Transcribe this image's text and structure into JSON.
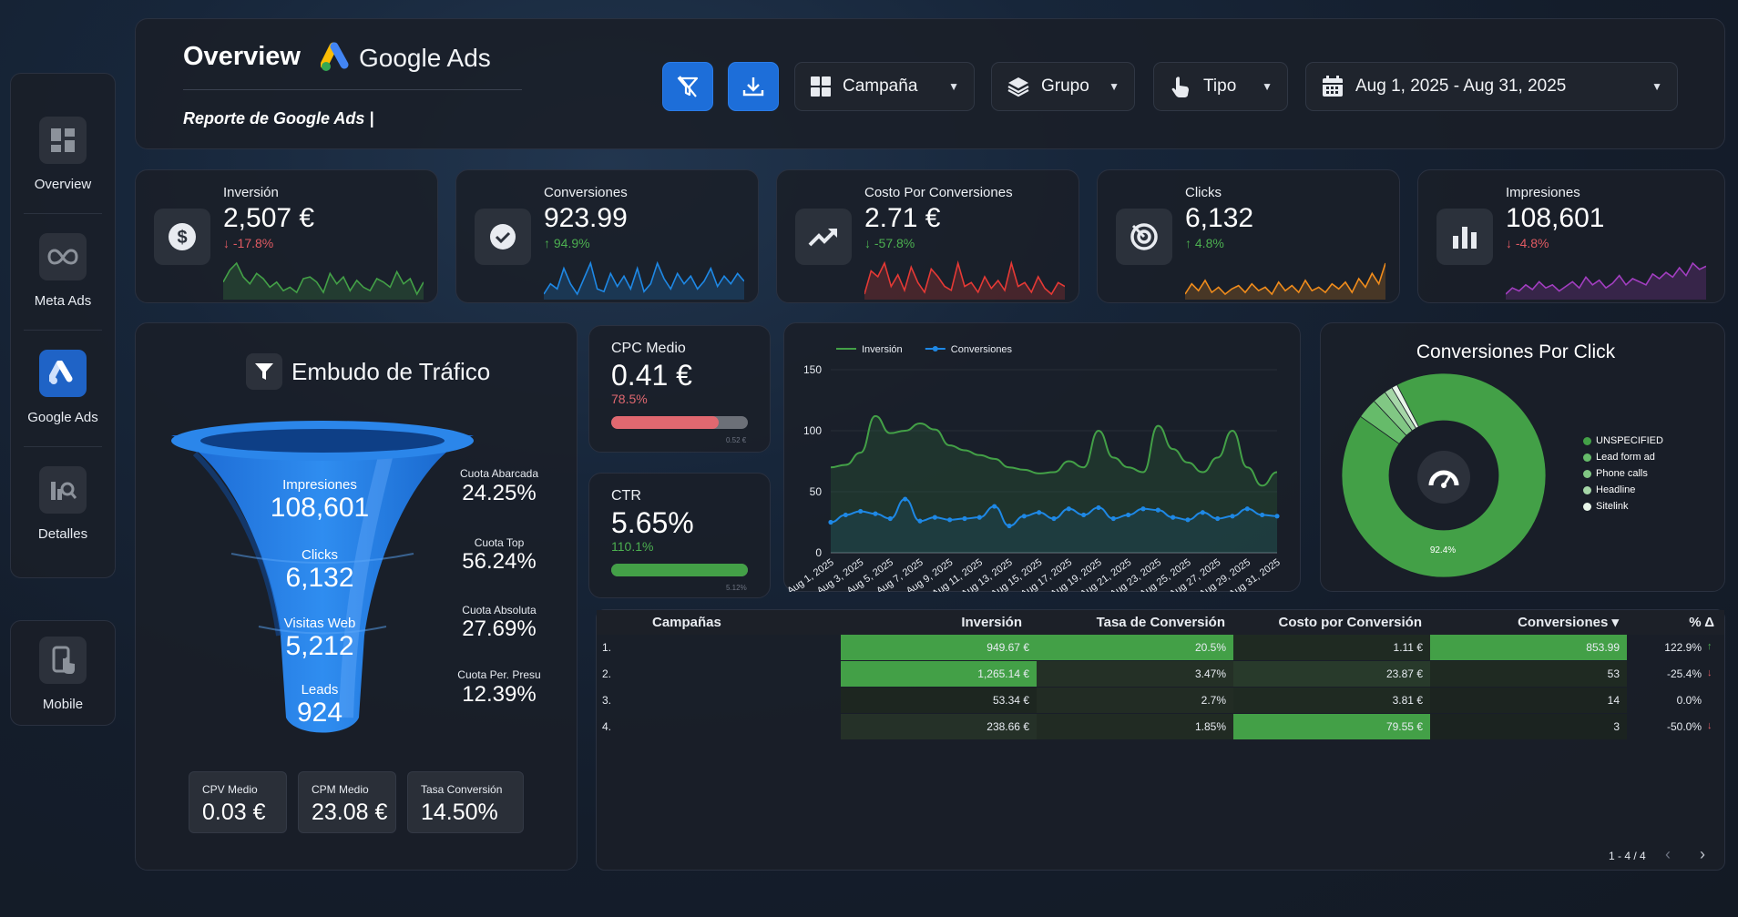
{
  "sidebar": {
    "items": [
      {
        "label": "Overview",
        "icon": "dashboard-grid-icon",
        "active": false
      },
      {
        "label": "Meta Ads",
        "icon": "meta-infinity-icon",
        "active": false
      },
      {
        "label": "Google Ads",
        "icon": "google-ads-icon",
        "active": true
      },
      {
        "label": "Detalles",
        "icon": "detail-search-icon",
        "active": false
      }
    ],
    "mobile": {
      "label": "Mobile",
      "icon": "mobile-touch-icon"
    }
  },
  "header": {
    "title": "Overview",
    "brand": "Google Ads",
    "subtitle": "Reporte de Google Ads |",
    "filters": [
      {
        "label": "Campaña",
        "icon": "grid-icon"
      },
      {
        "label": "Grupo",
        "icon": "layers-icon"
      },
      {
        "label": "Tipo",
        "icon": "pointer-hand-icon"
      }
    ],
    "date_range": "Aug 1, 2025 - Aug 31, 2025",
    "accent": "#1d6ed9"
  },
  "kpis": [
    {
      "label": "Inversión",
      "value": "2,507 €",
      "delta": "↓ -17.8%",
      "trend": "down",
      "color": "#43a047",
      "icon": "dollar-icon",
      "spark": [
        55,
        62,
        66,
        58,
        54,
        60,
        57,
        52,
        55,
        50,
        52,
        49,
        57,
        58,
        55,
        49,
        60,
        54,
        58,
        50,
        56,
        52,
        50,
        57,
        55,
        52,
        61,
        54,
        57,
        48,
        55
      ]
    },
    {
      "label": "Conversiones",
      "value": "923.99",
      "delta": "↑ 94.9%",
      "trend": "up",
      "color": "#1e88e5",
      "icon": "check-circle-icon",
      "spark": [
        48,
        52,
        50,
        58,
        52,
        48,
        54,
        60,
        50,
        49,
        56,
        51,
        55,
        50,
        58,
        49,
        52,
        60,
        54,
        50,
        56,
        52,
        55,
        50,
        53,
        58,
        51,
        55,
        52,
        56,
        53
      ]
    },
    {
      "label": "Costo Por Conversiones",
      "value": "2.71 €",
      "delta": "↓ -57.8%",
      "trend": "down",
      "color": "#e53935",
      "icon": "trend-up-icon",
      "spark": [
        46,
        58,
        55,
        62,
        50,
        56,
        48,
        60,
        52,
        47,
        59,
        55,
        50,
        48,
        62,
        50,
        52,
        47,
        55,
        49,
        53,
        48,
        62,
        50,
        52,
        47,
        55,
        49,
        46,
        52,
        50
      ]
    },
    {
      "label": "Clicks",
      "value": "6,132",
      "delta": "↑ 4.8%",
      "trend": "up",
      "color": "#f08c1c",
      "icon": "target-icon",
      "spark": [
        48,
        54,
        50,
        56,
        49,
        52,
        48,
        51,
        53,
        49,
        54,
        50,
        52,
        48,
        55,
        50,
        53,
        49,
        56,
        50,
        52,
        49,
        54,
        51,
        55,
        49,
        57,
        52,
        60,
        54,
        66
      ]
    },
    {
      "label": "Impresiones",
      "value": "108,601",
      "delta": "↓ -4.8%",
      "trend": "down",
      "color": "#a23ec0",
      "icon": "bar-chart-icon",
      "spark": [
        44,
        48,
        46,
        50,
        47,
        52,
        48,
        50,
        46,
        49,
        52,
        48,
        55,
        50,
        53,
        48,
        51,
        56,
        50,
        54,
        52,
        50,
        57,
        54,
        58,
        55,
        61,
        56,
        64,
        60,
        62
      ]
    }
  ],
  "funnel": {
    "title": "Embudo de Tráfico",
    "stages": [
      {
        "label": "Impresiones",
        "value": "108,601"
      },
      {
        "label": "Clicks",
        "value": "6,132"
      },
      {
        "label": "Visitas Web",
        "value": "5,212"
      },
      {
        "label": "Leads",
        "value": "924"
      }
    ],
    "shares": [
      {
        "label": "Cuota Abarcada",
        "value": "24.25%"
      },
      {
        "label": "Cuota Top",
        "value": "56.24%"
      },
      {
        "label": "Cuota Absoluta",
        "value": "27.69%"
      },
      {
        "label": "Cuota Per. Presu",
        "value": "12.39%"
      }
    ],
    "stats": [
      {
        "label": "CPV Medio",
        "value": "0.03 €"
      },
      {
        "label": "CPM Medio",
        "value": "23.08 €"
      },
      {
        "label": "Tasa Conversión",
        "value": "14.50%"
      }
    ]
  },
  "cpc": {
    "label": "CPC Medio",
    "value": "0.41 €",
    "delta": "78.5%",
    "progress": 0.785,
    "target": "0.52 €",
    "color": "#e06870"
  },
  "ctr": {
    "label": "CTR",
    "value": "5.65%",
    "delta": "110.1%",
    "progress": 1.0,
    "target": "5.12%",
    "color": "#43a047"
  },
  "chart_data": [
    {
      "type": "line",
      "series": [
        {
          "name": "Inversión",
          "color": "#43a047",
          "values": [
            70,
            72,
            82,
            112,
            98,
            100,
            106,
            101,
            88,
            84,
            80,
            77,
            70,
            68,
            65,
            66,
            75,
            70,
            100,
            78,
            70,
            66,
            104,
            85,
            74,
            66,
            78,
            100,
            70,
            55,
            66
          ]
        },
        {
          "name": "Conversiones",
          "color": "#1e88e5",
          "values": [
            25,
            31,
            34,
            32,
            28,
            44,
            26,
            29,
            27,
            28,
            29,
            38,
            22,
            30,
            33,
            28,
            36,
            31,
            37,
            28,
            31,
            36,
            35,
            29,
            27,
            33,
            28,
            30,
            36,
            31,
            30
          ]
        }
      ],
      "x": [
        "Aug 1, 2025",
        "Aug 2, 2025",
        "Aug 3, 2025",
        "Aug 4, 2025",
        "Aug 5, 2025",
        "Aug 6, 2025",
        "Aug 7, 2025",
        "Aug 8, 2025",
        "Aug 9, 2025",
        "Aug 10, 2025",
        "Aug 11, 2025",
        "Aug 12, 2025",
        "Aug 13, 2025",
        "Aug 14, 2025",
        "Aug 15, 2025",
        "Aug 16, 2025",
        "Aug 17, 2025",
        "Aug 18, 2025",
        "Aug 19, 2025",
        "Aug 20, 2025",
        "Aug 21, 2025",
        "Aug 22, 2025",
        "Aug 23, 2025",
        "Aug 24, 2025",
        "Aug 25, 2025",
        "Aug 26, 2025",
        "Aug 27, 2025",
        "Aug 28, 2025",
        "Aug 29, 2025",
        "Aug 30, 2025",
        "Aug 31, 2025"
      ],
      "xticks": [
        "Aug 1, 2025",
        "Aug 3, 2025",
        "Aug 5, 2025",
        "Aug 7, 2025",
        "Aug 9, 2025",
        "Aug 11, 2025",
        "Aug 13, 2025",
        "Aug 15, 2025",
        "Aug 17, 2025",
        "Aug 19, 2025",
        "Aug 21, 2025",
        "Aug 23, 2025",
        "Aug 25, 2025",
        "Aug 27, 2025",
        "Aug 29, 2025",
        "Aug 31, 2025"
      ],
      "yticks": [
        0,
        50,
        100,
        150
      ],
      "ylim": [
        0,
        150
      ],
      "legend": "top-left"
    },
    {
      "type": "pie",
      "title": "Conversiones Por Click",
      "donut": true,
      "categories": [
        "UNSPECIFIED",
        "Lead form ad",
        "Phone calls",
        "Headline",
        "Sitelink"
      ],
      "values": [
        92.4,
        3.2,
        2.2,
        1.3,
        0.9
      ],
      "colors": [
        "#43a047",
        "#66bb6a",
        "#81c784",
        "#a5d6a7",
        "#e8f5e9"
      ],
      "label_shown": "92.4%",
      "legend": "right"
    },
    {
      "type": "table",
      "columns": [
        "Campañas",
        "Inversión",
        "Tasa de Conversión",
        "Costo por Conversión",
        "Conversiones ▾",
        "% Δ"
      ],
      "rows": [
        {
          "n": "1.",
          "inv": "949.67 €",
          "rate": "20.5%",
          "cost": "1.11 €",
          "conv": "853.99",
          "delta": "122.9%",
          "arrow": "↑",
          "trend": "up"
        },
        {
          "n": "2.",
          "inv": "1,265.14 €",
          "rate": "3.47%",
          "cost": "23.87 €",
          "conv": "53",
          "delta": "-25.4%",
          "arrow": "↓",
          "trend": "down"
        },
        {
          "n": "3.",
          "inv": "53.34 €",
          "rate": "2.7%",
          "cost": "3.81 €",
          "conv": "14",
          "delta": "0.0%",
          "arrow": "",
          "trend": "flat"
        },
        {
          "n": "4.",
          "inv": "238.66 €",
          "rate": "1.85%",
          "cost": "79.55 €",
          "conv": "3",
          "delta": "-50.0%",
          "arrow": "↓",
          "trend": "down"
        }
      ],
      "pagination": "1 - 4 / 4"
    }
  ]
}
